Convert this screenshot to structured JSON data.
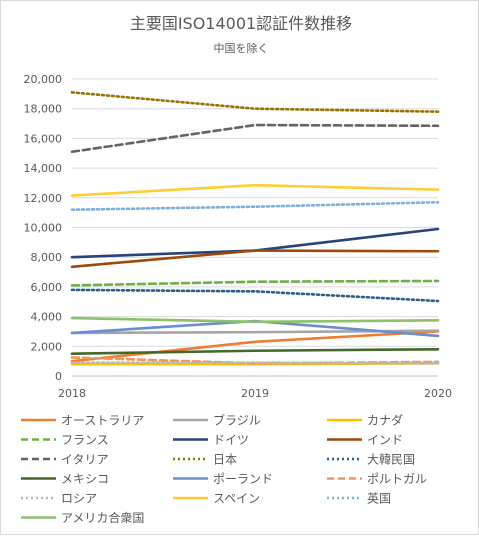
{
  "chart_data": {
    "type": "line",
    "title": "主要国ISO14001認証件数推移",
    "subtitle": "中国を除く",
    "x": [
      "2018",
      "2019",
      "2020"
    ],
    "ylim": [
      0,
      20000
    ],
    "yticks": [
      "0",
      "2,000",
      "4,000",
      "6,000",
      "8,000",
      "10,000",
      "12,000",
      "14,000",
      "16,000",
      "18,000",
      "20,000"
    ],
    "grid": "horizontal",
    "legend_position": "bottom",
    "series": [
      {
        "name": "オーストラリア",
        "values": [
          1000,
          2300,
          3000
        ],
        "color": "#ED7D31",
        "dash": "solid"
      },
      {
        "name": "ブラジル",
        "values": [
          2900,
          2950,
          3050
        ],
        "color": "#A5A5A5",
        "dash": "solid"
      },
      {
        "name": "カナダ",
        "values": [
          800,
          800,
          850
        ],
        "color": "#FFC000",
        "dash": "solid"
      },
      {
        "name": "フランス",
        "values": [
          6100,
          6350,
          6400
        ],
        "color": "#70AD47",
        "dash": "dashed"
      },
      {
        "name": "ドイツ",
        "values": [
          8000,
          8450,
          9900
        ],
        "color": "#264478",
        "dash": "solid"
      },
      {
        "name": "インド",
        "values": [
          7350,
          8450,
          8400
        ],
        "color": "#9E480E",
        "dash": "solid"
      },
      {
        "name": "イタリア",
        "values": [
          15100,
          16900,
          16850
        ],
        "color": "#636363",
        "dash": "dashed"
      },
      {
        "name": "日本",
        "values": [
          19100,
          18000,
          17800
        ],
        "color": "#997300",
        "dash": "dotted"
      },
      {
        "name": "大韓民国",
        "values": [
          5800,
          5700,
          5050
        ],
        "color": "#255E91",
        "dash": "dotted"
      },
      {
        "name": "メキシコ",
        "values": [
          1500,
          1700,
          1800
        ],
        "color": "#43682B",
        "dash": "solid"
      },
      {
        "name": "ポーランド",
        "values": [
          2900,
          3700,
          2700
        ],
        "color": "#698ED0",
        "dash": "solid"
      },
      {
        "name": "ポルトガル",
        "values": [
          1250,
          850,
          950
        ],
        "color": "#F1975A",
        "dash": "dashed"
      },
      {
        "name": "ロシア",
        "values": [
          900,
          900,
          850
        ],
        "color": "#B7B7B7",
        "dash": "dotted"
      },
      {
        "name": "スペイン",
        "values": [
          12150,
          12850,
          12550
        ],
        "color": "#FFCD33",
        "dash": "solid"
      },
      {
        "name": "英国",
        "values": [
          11200,
          11400,
          11700
        ],
        "color": "#7CAFDD",
        "dash": "dotted"
      },
      {
        "name": "アメリカ合衆国",
        "values": [
          3900,
          3650,
          3750
        ],
        "color": "#8CC168",
        "dash": "solid"
      }
    ]
  }
}
